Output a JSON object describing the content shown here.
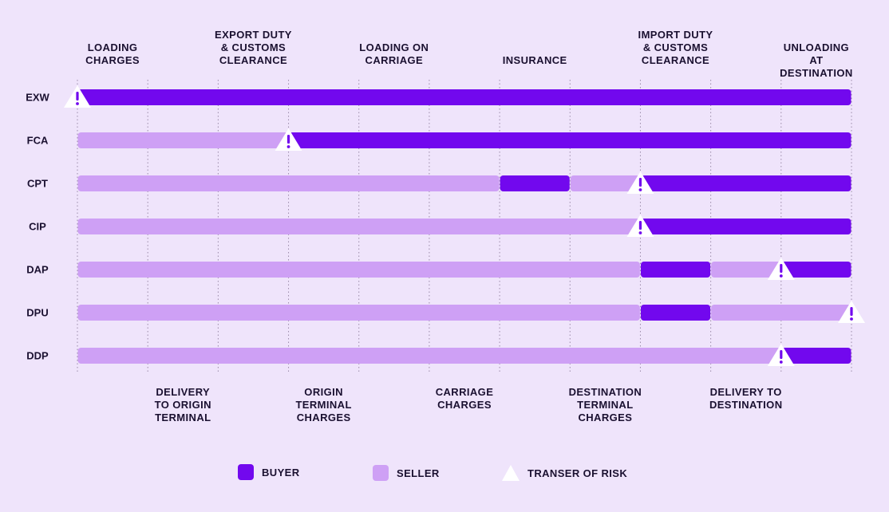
{
  "colors": {
    "background": "#efe4fb",
    "buyer": "#7208ee",
    "seller": "#cea0f5",
    "gridline": "#9a8aa8",
    "text": "#1a1030",
    "warning_mark": "#7208ee"
  },
  "stages": [
    {
      "label": "LOADING\nCHARGES",
      "side": "top"
    },
    {
      "label": "DELIVERY\nTO ORIGIN\nTERMINAL",
      "side": "bottom"
    },
    {
      "label": "EXPORT DUTY\n& CUSTOMS\nCLEARANCE",
      "side": "top"
    },
    {
      "label": "ORIGIN\nTERMINAL\nCHARGES",
      "side": "bottom"
    },
    {
      "label": "LOADING ON\nCARRIAGE",
      "side": "top"
    },
    {
      "label": "CARRIAGE\nCHARGES",
      "side": "bottom"
    },
    {
      "label": "INSURANCE",
      "side": "top"
    },
    {
      "label": "DESTINATION\nTERMINAL\nCHARGES",
      "side": "bottom"
    },
    {
      "label": "IMPORT DUTY\n& CUSTOMS\nCLEARANCE",
      "side": "top"
    },
    {
      "label": "DELIVERY TO\nDESTINATION",
      "side": "bottom"
    },
    {
      "label": "UNLOADING AT\nDESTINATION",
      "side": "top"
    }
  ],
  "rows": [
    {
      "name": "EXW",
      "segments": [
        {
          "from": 0,
          "to": 11,
          "party": "buyer"
        }
      ],
      "risk_at": 0
    },
    {
      "name": "FCA",
      "segments": [
        {
          "from": 0,
          "to": 3,
          "party": "seller"
        },
        {
          "from": 3,
          "to": 11,
          "party": "buyer"
        }
      ],
      "risk_at": 3
    },
    {
      "name": "CPT",
      "segments": [
        {
          "from": 0,
          "to": 6,
          "party": "seller"
        },
        {
          "from": 6,
          "to": 7,
          "party": "buyer"
        },
        {
          "from": 7,
          "to": 8,
          "party": "seller"
        },
        {
          "from": 8,
          "to": 11,
          "party": "buyer"
        }
      ],
      "risk_at": 8
    },
    {
      "name": "CIP",
      "segments": [
        {
          "from": 0,
          "to": 8,
          "party": "seller"
        },
        {
          "from": 8,
          "to": 11,
          "party": "buyer"
        }
      ],
      "risk_at": 8
    },
    {
      "name": "DAP",
      "segments": [
        {
          "from": 0,
          "to": 8,
          "party": "seller"
        },
        {
          "from": 8,
          "to": 9,
          "party": "buyer"
        },
        {
          "from": 9,
          "to": 10,
          "party": "seller"
        },
        {
          "from": 10,
          "to": 11,
          "party": "buyer"
        }
      ],
      "risk_at": 10
    },
    {
      "name": "DPU",
      "segments": [
        {
          "from": 0,
          "to": 8,
          "party": "seller"
        },
        {
          "from": 8,
          "to": 9,
          "party": "buyer"
        },
        {
          "from": 9,
          "to": 11,
          "party": "seller"
        }
      ],
      "risk_at": 11
    },
    {
      "name": "DDP",
      "segments": [
        {
          "from": 0,
          "to": 10,
          "party": "seller"
        },
        {
          "from": 10,
          "to": 11,
          "party": "buyer"
        }
      ],
      "risk_at": 10
    }
  ],
  "legend": {
    "buyer_label": "BUYER",
    "seller_label": "SELLER",
    "risk_label": "TRANSER OF RISK"
  }
}
